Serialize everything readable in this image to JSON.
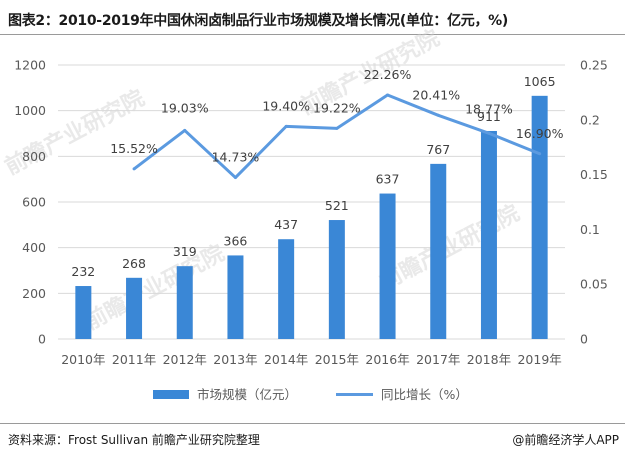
{
  "header": {
    "title": "图表2：2010-2019年中国休闲卤制品行业市场规模及增长情况(单位：亿元，%)"
  },
  "footer": {
    "source": "资料来源：Frost Sullivan  前瞻产业研究院整理",
    "brand": "@前瞻经济学人APP"
  },
  "watermark": {
    "text": "前瞻产业研究院"
  },
  "chart_data": {
    "type": "bar+line",
    "categories": [
      "2010年",
      "2011年",
      "2012年",
      "2013年",
      "2014年",
      "2015年",
      "2016年",
      "2017年",
      "2018年",
      "2019年"
    ],
    "series": [
      {
        "name": "市场规模（亿元）",
        "type": "bar",
        "axis": "left",
        "values": [
          232,
          268,
          319,
          366,
          437,
          521,
          637,
          767,
          911,
          1065
        ],
        "labels": [
          "232",
          "268",
          "319",
          "366",
          "437",
          "521",
          "637",
          "767",
          "911",
          "1065"
        ],
        "color": "#3a87d6"
      },
      {
        "name": "同比增长（%）",
        "type": "line",
        "axis": "right",
        "values": [
          null,
          0.1552,
          0.1903,
          0.1473,
          0.194,
          0.1922,
          0.2226,
          0.2041,
          0.1877,
          0.169
        ],
        "labels": [
          "",
          "15.52%",
          "19.03%",
          "14.73%",
          "19.40%",
          "19.22%",
          "22.26%",
          "20.41%",
          "18.77%",
          "16.90%"
        ],
        "color": "#5b9ae0"
      }
    ],
    "y_left": {
      "min": 0,
      "max": 1200,
      "ticks": [
        "0",
        "200",
        "400",
        "600",
        "800",
        "1000",
        "1200"
      ]
    },
    "y_right": {
      "min": 0,
      "max": 0.25,
      "ticks": [
        "0",
        "0.05",
        "0.1",
        "0.15",
        "0.2",
        "0.25"
      ]
    },
    "grid": true,
    "legend_position": "bottom"
  }
}
